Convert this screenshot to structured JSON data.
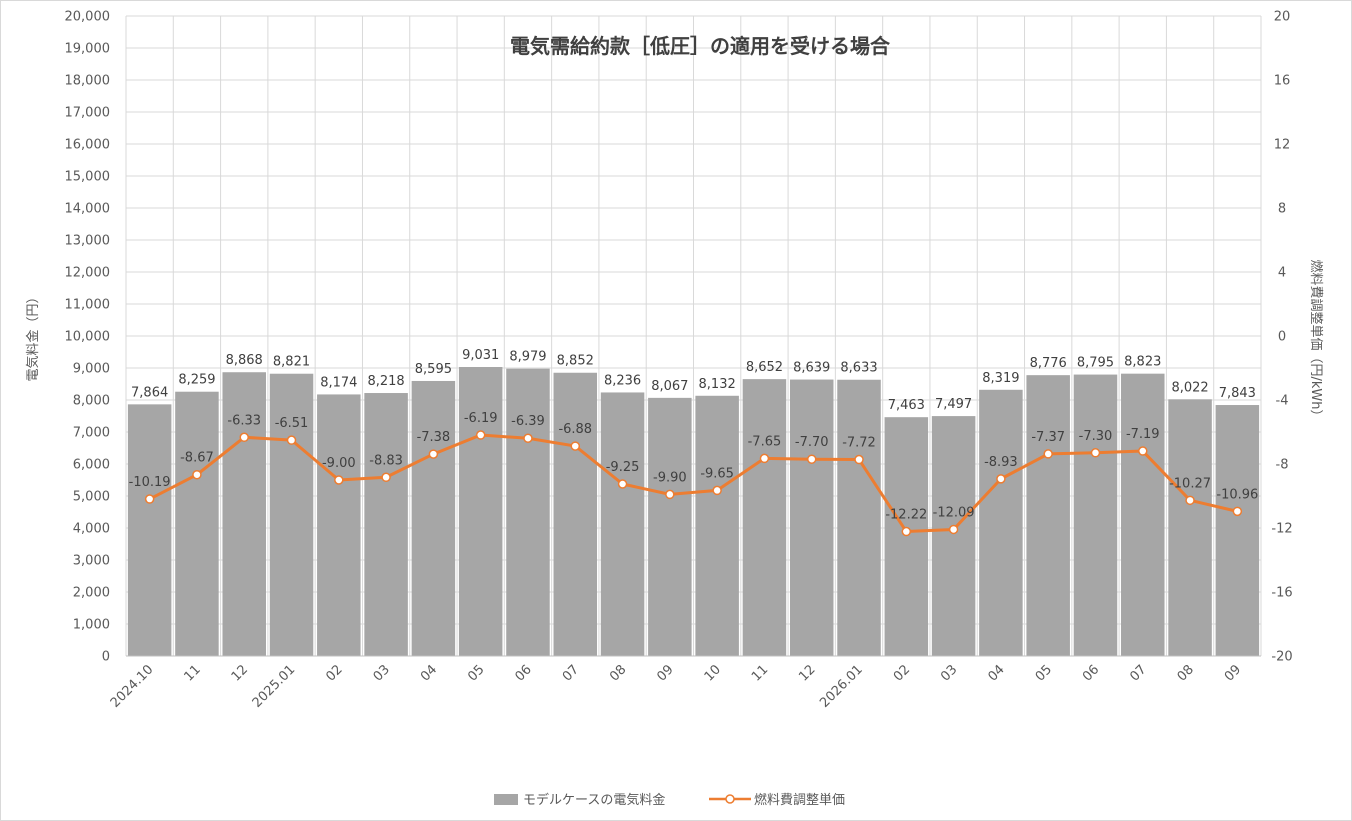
{
  "chart_data": {
    "type": "bar",
    "title": "電気需給約款［低圧］の適用を受ける場合",
    "categories": [
      "2024.10",
      "11",
      "12",
      "2025.01",
      "02",
      "03",
      "04",
      "05",
      "06",
      "07",
      "08",
      "09",
      "10",
      "11",
      "12",
      "2026.01",
      "02",
      "03",
      "04",
      "05",
      "06",
      "07",
      "08",
      "09"
    ],
    "series": [
      {
        "name": "モデルケースの電気料金",
        "type": "bar",
        "axis": "left",
        "color": "#a6a6a6",
        "values": [
          7864,
          8259,
          8868,
          8821,
          8174,
          8218,
          8595,
          9031,
          8979,
          8852,
          8236,
          8067,
          8132,
          8652,
          8639,
          8633,
          7463,
          7497,
          8319,
          8776,
          8795,
          8823,
          8022,
          7843
        ],
        "labels": [
          "7,864",
          "8,259",
          "8,868",
          "8,821",
          "8,174",
          "8,218",
          "8,595",
          "9,031",
          "8,979",
          "8,852",
          "8,236",
          "8,067",
          "8,132",
          "8,652",
          "8,639",
          "8,633",
          "7,463",
          "7,497",
          "8,319",
          "8,776",
          "8,795",
          "8,823",
          "8,022",
          "7,843"
        ]
      },
      {
        "name": "燃料費調整単価",
        "type": "line",
        "axis": "right",
        "color": "#ed7d31",
        "values": [
          -10.19,
          -8.67,
          -6.33,
          -6.51,
          -9.0,
          -8.83,
          -7.38,
          -6.19,
          -6.39,
          -6.88,
          -9.25,
          -9.9,
          -9.65,
          -7.65,
          -7.7,
          -7.72,
          -12.22,
          -12.09,
          -8.93,
          -7.37,
          -7.3,
          -7.19,
          -10.27,
          -10.96
        ],
        "labels": [
          "-10.19",
          "-8.67",
          "-6.33",
          "-6.51",
          "-9.00",
          "-8.83",
          "-7.38",
          "-6.19",
          "-6.39",
          "-6.88",
          "-9.25",
          "-9.90",
          "-9.65",
          "-7.65",
          "-7.70",
          "-7.72",
          "-12.22",
          "-12.09",
          "-8.93",
          "-7.37",
          "-7.30",
          "-7.19",
          "-10.27",
          "-10.96"
        ]
      }
    ],
    "y_left": {
      "label": "電気料金（円）",
      "ylim": [
        0,
        20000
      ],
      "ticks": [
        0,
        1000,
        2000,
        3000,
        4000,
        5000,
        6000,
        7000,
        8000,
        9000,
        10000,
        11000,
        12000,
        13000,
        14000,
        15000,
        16000,
        17000,
        18000,
        19000,
        20000
      ],
      "tick_labels": [
        "0",
        "1,000",
        "2,000",
        "3,000",
        "4,000",
        "5,000",
        "6,000",
        "7,000",
        "8,000",
        "9,000",
        "10,000",
        "11,000",
        "12,000",
        "13,000",
        "14,000",
        "15,000",
        "16,000",
        "17,000",
        "18,000",
        "19,000",
        "20,000"
      ]
    },
    "y_right": {
      "label": "燃料費調整単価（円/kWh）",
      "ylim": [
        -20,
        20
      ],
      "ticks": [
        -20,
        -16,
        -12,
        -8,
        -4,
        0,
        4,
        8,
        12,
        16,
        20
      ],
      "tick_labels": [
        "-20",
        "-16",
        "-12",
        "-8",
        "-4",
        "0",
        "4",
        "8",
        "12",
        "16",
        "20"
      ]
    },
    "grid": true,
    "legend_position": "bottom"
  }
}
